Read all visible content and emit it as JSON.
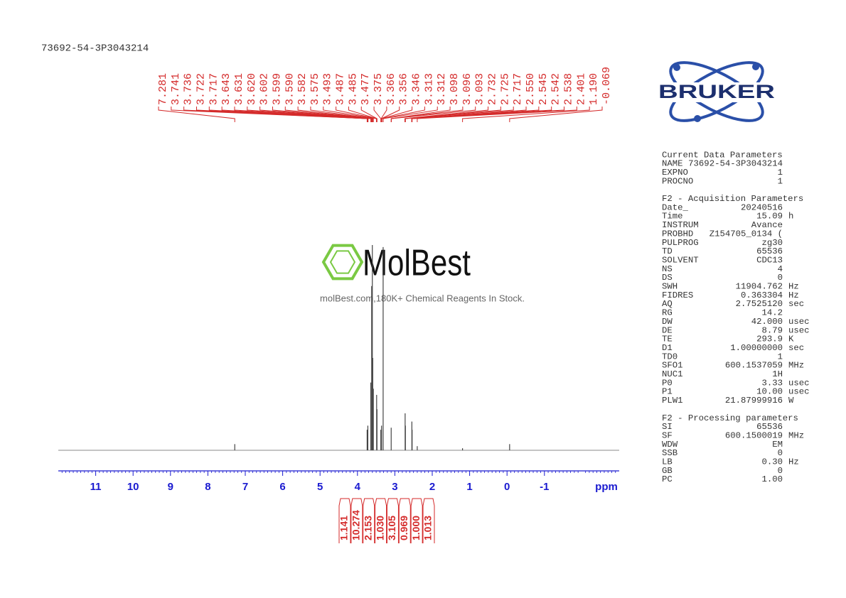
{
  "chart_data": {
    "type": "spectrum",
    "title": "73692-54-3P3043214",
    "x_label": "ppm",
    "xlim": [
      12,
      -3
    ],
    "xticks": [
      11,
      10,
      9,
      8,
      7,
      6,
      5,
      4,
      3,
      2,
      1,
      0,
      -1
    ],
    "signals": {
      "ppm": [
        7.281,
        3.741,
        3.722,
        3.643,
        3.62,
        3.602,
        3.59,
        3.575,
        3.487,
        3.477,
        3.375,
        3.356,
        3.313,
        3.098,
        2.725,
        2.717,
        2.545,
        2.538,
        2.401,
        1.19,
        -0.069
      ],
      "intensity": [
        3,
        10,
        12,
        33,
        80,
        100,
        45,
        30,
        27,
        20,
        10,
        12,
        99,
        11,
        18,
        12,
        14,
        10,
        2,
        1,
        3
      ]
    },
    "peaks": {
      "values": [
        7.281,
        3.741,
        3.736,
        3.722,
        3.717,
        3.643,
        3.631,
        3.62,
        3.602,
        3.599,
        3.59,
        3.582,
        3.575,
        3.493,
        3.487,
        3.485,
        3.477,
        3.375,
        3.366,
        3.356,
        3.346,
        3.313,
        3.312,
        3.098,
        3.096,
        3.093,
        2.732,
        2.725,
        2.717,
        2.55,
        2.545,
        2.542,
        2.538,
        2.401,
        1.19,
        -0.069
      ],
      "value_labels": [
        "7.281",
        "3.741",
        "3.736",
        "3.722",
        "3.717",
        "3.643",
        "3.631",
        "3.620",
        "3.602",
        "3.599",
        "3.590",
        "3.582",
        "3.575",
        "3.493",
        "3.487",
        "3.485",
        "3.477",
        "3.375",
        "3.366",
        "3.356",
        "3.346",
        "3.313",
        "3.312",
        "3.098",
        "3.096",
        "3.093",
        "2.732",
        "2.725",
        "2.717",
        "2.550",
        "2.545",
        "2.542",
        "2.538",
        "2.401",
        "1.190",
        "-0.069"
      ]
    },
    "integrals": {
      "values": [
        1.141,
        10.274,
        2.153,
        1.03,
        3.105,
        0.969,
        1,
        1.013
      ],
      "value_labels": [
        "1.141",
        "10.274",
        "2.153",
        "1.030",
        "3.105",
        "0.969",
        "1.000",
        "1.013"
      ]
    }
  },
  "logo": "BRUKER",
  "watermark": {
    "name": "MolBest",
    "tagline": "molBest.com,180K+ Chemical Reagents In Stock."
  },
  "parameters": [
    {
      "title": "Current Data Parameters",
      "rows": [
        [
          "NAME",
          "73692-54-3P3043214"
        ],
        [
          "EXPNO",
          "1"
        ],
        [
          "PROCNO",
          "1"
        ]
      ]
    },
    {
      "title": "F2 - Acquisition Parameters",
      "rows": [
        [
          "Date_",
          "20240516"
        ],
        [
          "Time",
          "15.09",
          "h"
        ],
        [
          "INSTRUM",
          "Avance"
        ],
        [
          "PROBHD",
          "Z154705_0134 ("
        ],
        [
          "PULPROG",
          "zg30"
        ],
        [
          "TD",
          "65536"
        ],
        [
          "SOLVENT",
          "CDC13"
        ],
        [
          "NS",
          "4"
        ],
        [
          "DS",
          "0"
        ],
        [
          "SWH",
          "11904.762",
          "Hz"
        ],
        [
          "FIDRES",
          "0.363304",
          "Hz"
        ],
        [
          "AQ",
          "2.7525120",
          "sec"
        ],
        [
          "RG",
          "14.2"
        ],
        [
          "DW",
          "42.000",
          "usec"
        ],
        [
          "DE",
          "8.79",
          "usec"
        ],
        [
          "TE",
          "293.9",
          "K"
        ],
        [
          "D1",
          "1.00000000",
          "sec"
        ],
        [
          "TD0",
          "1"
        ],
        [
          "SFO1",
          "600.1537059",
          "MHz"
        ],
        [
          "NUC1",
          "1H"
        ],
        [
          "P0",
          "3.33",
          "usec"
        ],
        [
          "P1",
          "10.00",
          "usec"
        ],
        [
          "PLW1",
          "21.87999916",
          "W"
        ]
      ]
    },
    {
      "title": "F2 - Processing parameters",
      "rows": [
        [
          "SI",
          "65536"
        ],
        [
          "SF",
          "600.1500019",
          "MHz"
        ],
        [
          "WDW",
          "EM"
        ],
        [
          "SSB",
          "0"
        ],
        [
          "LB",
          "0.30",
          "Hz"
        ],
        [
          "GB",
          "0"
        ],
        [
          "PC",
          "1.00"
        ]
      ]
    }
  ]
}
